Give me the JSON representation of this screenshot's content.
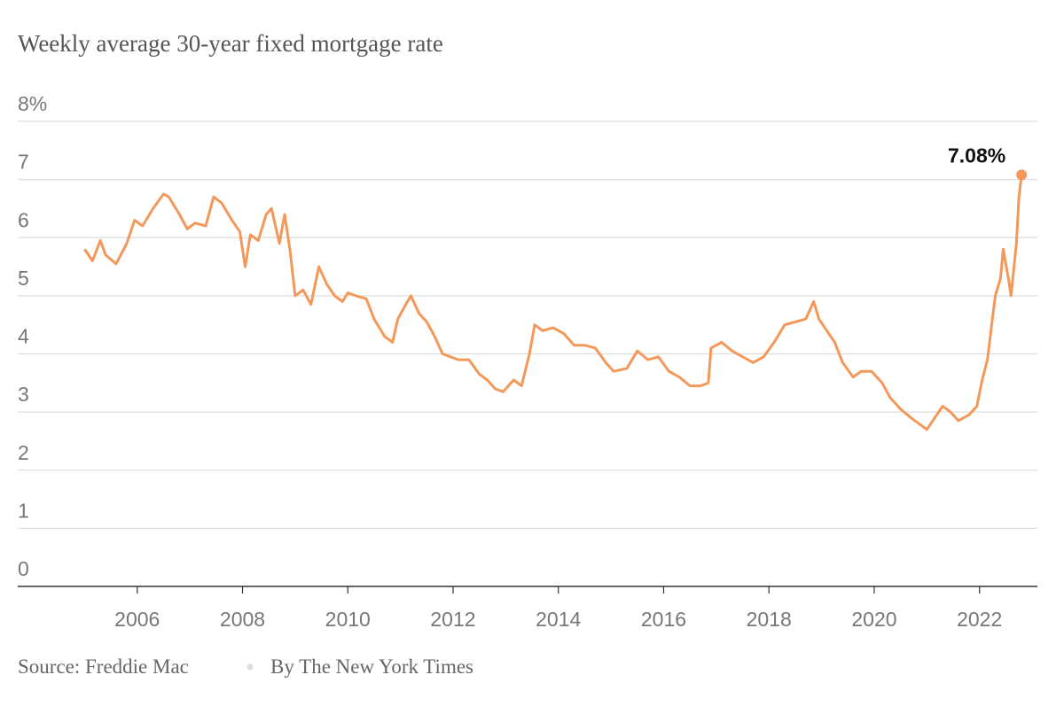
{
  "chart_data": {
    "type": "line",
    "title": "Weekly average 30-year fixed mortgage rate",
    "source": "Source: Freddie Mac",
    "credit": "By The New York Times",
    "color": "#f4985a",
    "x": [
      2005.0,
      2005.15,
      2005.3,
      2005.4,
      2005.6,
      2005.8,
      2005.95,
      2006.1,
      2006.3,
      2006.5,
      2006.6,
      2006.8,
      2006.95,
      2007.1,
      2007.3,
      2007.45,
      2007.6,
      2007.8,
      2007.95,
      2008.05,
      2008.15,
      2008.3,
      2008.45,
      2008.55,
      2008.7,
      2008.8,
      2008.9,
      2009.0,
      2009.15,
      2009.3,
      2009.45,
      2009.6,
      2009.75,
      2009.9,
      2010.0,
      2010.15,
      2010.35,
      2010.5,
      2010.7,
      2010.85,
      2010.95,
      2011.1,
      2011.2,
      2011.35,
      2011.5,
      2011.65,
      2011.8,
      2011.95,
      2012.1,
      2012.3,
      2012.5,
      2012.65,
      2012.8,
      2012.95,
      2013.15,
      2013.3,
      2013.45,
      2013.55,
      2013.7,
      2013.9,
      2014.1,
      2014.3,
      2014.5,
      2014.7,
      2014.9,
      2015.05,
      2015.3,
      2015.5,
      2015.7,
      2015.9,
      2016.1,
      2016.3,
      2016.5,
      2016.7,
      2016.85,
      2016.9,
      2017.1,
      2017.3,
      2017.5,
      2017.7,
      2017.9,
      2018.1,
      2018.3,
      2018.5,
      2018.7,
      2018.85,
      2018.95,
      2019.1,
      2019.25,
      2019.4,
      2019.6,
      2019.75,
      2019.95,
      2020.15,
      2020.3,
      2020.5,
      2020.7,
      2020.85,
      2021.0,
      2021.15,
      2021.3,
      2021.45,
      2021.6,
      2021.8,
      2021.95,
      2022.05,
      2022.15,
      2022.3,
      2022.4,
      2022.45,
      2022.55,
      2022.6,
      2022.7,
      2022.75,
      2022.8
    ],
    "values": [
      5.8,
      5.6,
      5.95,
      5.7,
      5.55,
      5.9,
      6.3,
      6.2,
      6.5,
      6.75,
      6.7,
      6.4,
      6.15,
      6.25,
      6.2,
      6.7,
      6.6,
      6.3,
      6.1,
      5.5,
      6.05,
      5.95,
      6.4,
      6.5,
      5.9,
      6.4,
      5.8,
      5.0,
      5.1,
      4.85,
      5.5,
      5.2,
      5.0,
      4.9,
      5.05,
      5.0,
      4.95,
      4.6,
      4.3,
      4.2,
      4.6,
      4.85,
      5.0,
      4.7,
      4.55,
      4.3,
      4.0,
      3.95,
      3.9,
      3.9,
      3.65,
      3.55,
      3.4,
      3.35,
      3.55,
      3.45,
      4.0,
      4.5,
      4.4,
      4.45,
      4.35,
      4.15,
      4.15,
      4.1,
      3.85,
      3.7,
      3.75,
      4.05,
      3.9,
      3.95,
      3.7,
      3.6,
      3.45,
      3.45,
      3.5,
      4.1,
      4.2,
      4.05,
      3.95,
      3.85,
      3.95,
      4.2,
      4.5,
      4.55,
      4.6,
      4.9,
      4.6,
      4.4,
      4.2,
      3.85,
      3.6,
      3.7,
      3.7,
      3.5,
      3.25,
      3.05,
      2.9,
      2.8,
      2.7,
      2.9,
      3.1,
      3.0,
      2.85,
      2.95,
      3.1,
      3.55,
      3.9,
      5.0,
      5.3,
      5.8,
      5.3,
      5.0,
      5.9,
      6.7,
      7.08
    ],
    "value_labels": [
      null,
      null,
      null,
      null,
      null,
      null,
      null,
      null,
      null,
      null,
      null,
      null,
      null,
      null,
      null,
      null,
      null,
      null,
      null,
      null,
      null,
      null,
      null,
      null,
      null,
      null,
      null,
      null,
      null,
      null,
      null,
      null,
      null,
      null,
      null,
      null,
      null,
      null,
      null,
      null,
      null,
      null,
      null,
      null,
      null,
      null,
      null,
      null,
      null,
      null,
      null,
      null,
      null,
      null,
      null,
      null,
      null,
      null,
      null,
      null,
      null,
      null,
      null,
      null,
      null,
      null,
      null,
      null,
      null,
      null,
      null,
      null,
      null,
      null,
      null,
      null,
      null,
      null,
      null,
      null,
      null,
      null,
      null,
      null,
      null,
      null,
      null,
      null,
      null,
      null,
      null,
      null,
      null,
      null,
      null,
      null,
      null,
      null,
      null,
      null,
      null,
      null,
      null,
      null,
      null,
      null,
      null,
      null,
      null,
      null,
      null,
      null,
      null,
      null,
      "7.08%"
    ],
    "xlim": [
      2003.73,
      2023.1
    ],
    "xticks": [
      2006,
      2008,
      2010,
      2012,
      2014,
      2016,
      2018,
      2020,
      2022
    ],
    "ylim": [
      0,
      8
    ],
    "yticks": [
      0,
      1,
      2,
      3,
      4,
      5,
      6,
      7,
      {
        "value": 8,
        "label": "8%"
      }
    ],
    "grid": true
  }
}
